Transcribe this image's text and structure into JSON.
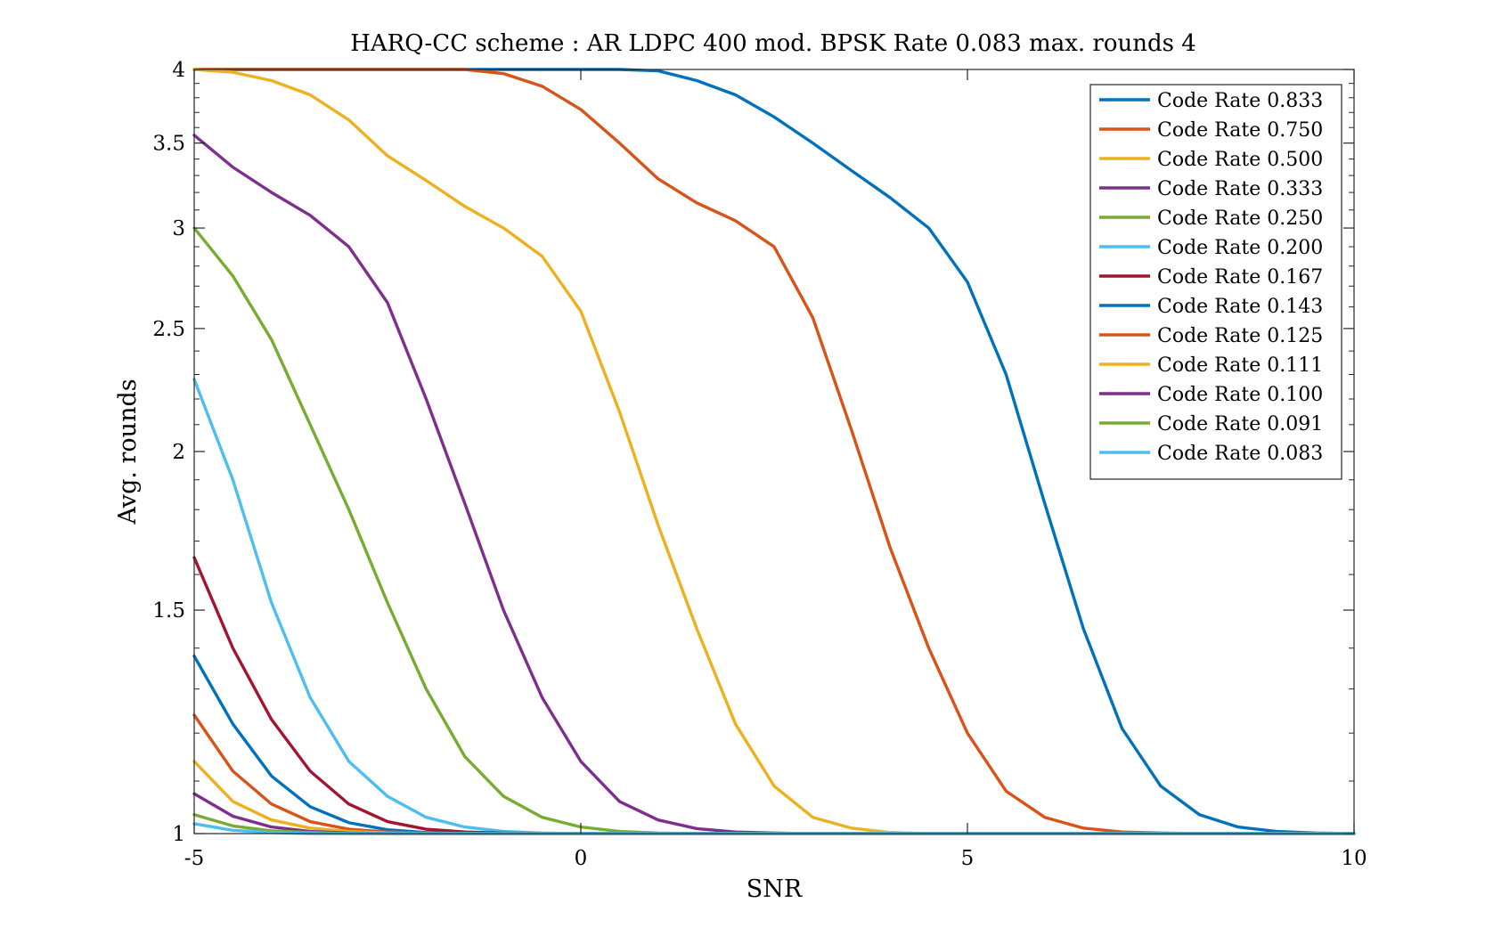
{
  "chart_data": {
    "type": "line",
    "title": "HARQ-CC scheme : AR LDPC 400 mod. BPSK Rate 0.083 max. rounds 4",
    "xlabel": "SNR",
    "ylabel": "Avg. rounds",
    "xlim": [
      -5,
      10
    ],
    "ylim": [
      1,
      4
    ],
    "yscale": "log",
    "x_ticks": [
      -5,
      0,
      5,
      10
    ],
    "x_tick_labels": [
      "-5",
      "0",
      "5",
      "10"
    ],
    "y_ticks": [
      1,
      1.5,
      2,
      2.5,
      3,
      3.5,
      4
    ],
    "y_tick_labels": [
      "1",
      "1.5",
      "2",
      "2.5",
      "3",
      "3.5",
      "4"
    ],
    "grid": false,
    "legend_position": "top-right",
    "x": [
      -5,
      -4.5,
      -4,
      -3.5,
      -3,
      -2.5,
      -2,
      -1.5,
      -1,
      -0.5,
      0,
      0.5,
      1,
      1.5,
      2,
      2.5,
      3,
      3.5,
      4,
      4.5,
      5,
      5.5,
      6,
      6.5,
      7,
      7.5,
      8,
      8.5,
      9,
      9.5,
      10
    ],
    "series": [
      {
        "name": "Code Rate 0.833",
        "color": "#0072BD",
        "values": [
          4,
          4,
          4,
          4,
          4,
          4,
          4,
          4,
          4,
          4,
          4,
          4,
          3.99,
          3.92,
          3.82,
          3.67,
          3.5,
          3.33,
          3.17,
          3.0,
          2.72,
          2.3,
          1.82,
          1.45,
          1.21,
          1.09,
          1.035,
          1.012,
          1.004,
          1.001,
          1.0
        ]
      },
      {
        "name": "Code Rate 0.750",
        "color": "#D95319",
        "values": [
          4,
          4,
          4,
          4,
          4,
          4,
          4,
          4,
          3.97,
          3.88,
          3.72,
          3.5,
          3.28,
          3.14,
          3.04,
          2.9,
          2.55,
          2.08,
          1.68,
          1.4,
          1.2,
          1.08,
          1.03,
          1.01,
          1.003,
          1.001,
          1.0,
          1.0,
          1.0,
          1.0,
          1.0
        ]
      },
      {
        "name": "Code Rate 0.500",
        "color": "#EDB120",
        "values": [
          4,
          3.98,
          3.92,
          3.82,
          3.65,
          3.42,
          3.27,
          3.12,
          3.0,
          2.85,
          2.58,
          2.15,
          1.75,
          1.45,
          1.22,
          1.09,
          1.03,
          1.01,
          1.002,
          1.0,
          1.0,
          1.0,
          1.0,
          1.0,
          1.0,
          1.0,
          1.0,
          1.0,
          1.0,
          1.0,
          1.0
        ]
      },
      {
        "name": "Code Rate 0.333",
        "color": "#7E2F8E",
        "values": [
          3.55,
          3.35,
          3.2,
          3.07,
          2.9,
          2.62,
          2.2,
          1.82,
          1.5,
          1.28,
          1.14,
          1.06,
          1.025,
          1.009,
          1.003,
          1.001,
          1.0,
          1.0,
          1.0,
          1.0,
          1.0,
          1.0,
          1.0,
          1.0,
          1.0,
          1.0,
          1.0,
          1.0,
          1.0,
          1.0,
          1.0
        ]
      },
      {
        "name": "Code Rate 0.250",
        "color": "#77AC30",
        "values": [
          3.0,
          2.75,
          2.45,
          2.1,
          1.8,
          1.52,
          1.3,
          1.15,
          1.07,
          1.03,
          1.012,
          1.004,
          1.001,
          1.0,
          1.0,
          1.0,
          1.0,
          1.0,
          1.0,
          1.0,
          1.0,
          1.0,
          1.0,
          1.0,
          1.0,
          1.0,
          1.0,
          1.0,
          1.0,
          1.0,
          1.0
        ]
      },
      {
        "name": "Code Rate 0.200",
        "color": "#4DBEEE",
        "values": [
          2.28,
          1.9,
          1.52,
          1.28,
          1.14,
          1.07,
          1.03,
          1.012,
          1.004,
          1.001,
          1.0,
          1.0,
          1.0,
          1.0,
          1.0,
          1.0,
          1.0,
          1.0,
          1.0,
          1.0,
          1.0,
          1.0,
          1.0,
          1.0,
          1.0,
          1.0,
          1.0,
          1.0,
          1.0,
          1.0,
          1.0
        ]
      },
      {
        "name": "Code Rate 0.167",
        "color": "#A2142F",
        "values": [
          1.65,
          1.4,
          1.23,
          1.12,
          1.055,
          1.022,
          1.008,
          1.003,
          1.001,
          1.0,
          1.0,
          1.0,
          1.0,
          1.0,
          1.0,
          1.0,
          1.0,
          1.0,
          1.0,
          1.0,
          1.0,
          1.0,
          1.0,
          1.0,
          1.0,
          1.0,
          1.0,
          1.0,
          1.0,
          1.0,
          1.0
        ]
      },
      {
        "name": "Code Rate 0.143",
        "color": "#0072BD",
        "values": [
          1.38,
          1.22,
          1.11,
          1.05,
          1.02,
          1.007,
          1.002,
          1.0,
          1.0,
          1.0,
          1.0,
          1.0,
          1.0,
          1.0,
          1.0,
          1.0,
          1.0,
          1.0,
          1.0,
          1.0,
          1.0,
          1.0,
          1.0,
          1.0,
          1.0,
          1.0,
          1.0,
          1.0,
          1.0,
          1.0,
          1.0
        ]
      },
      {
        "name": "Code Rate 0.125",
        "color": "#D95319",
        "values": [
          1.24,
          1.12,
          1.055,
          1.022,
          1.008,
          1.003,
          1.001,
          1.0,
          1.0,
          1.0,
          1.0,
          1.0,
          1.0,
          1.0,
          1.0,
          1.0,
          1.0,
          1.0,
          1.0,
          1.0,
          1.0,
          1.0,
          1.0,
          1.0,
          1.0,
          1.0,
          1.0,
          1.0,
          1.0,
          1.0,
          1.0
        ]
      },
      {
        "name": "Code Rate 0.111",
        "color": "#EDB120",
        "values": [
          1.14,
          1.06,
          1.025,
          1.01,
          1.004,
          1.001,
          1.0,
          1.0,
          1.0,
          1.0,
          1.0,
          1.0,
          1.0,
          1.0,
          1.0,
          1.0,
          1.0,
          1.0,
          1.0,
          1.0,
          1.0,
          1.0,
          1.0,
          1.0,
          1.0,
          1.0,
          1.0,
          1.0,
          1.0,
          1.0,
          1.0
        ]
      },
      {
        "name": "Code Rate 0.100",
        "color": "#7E2F8E",
        "values": [
          1.075,
          1.032,
          1.012,
          1.004,
          1.001,
          1.0,
          1.0,
          1.0,
          1.0,
          1.0,
          1.0,
          1.0,
          1.0,
          1.0,
          1.0,
          1.0,
          1.0,
          1.0,
          1.0,
          1.0,
          1.0,
          1.0,
          1.0,
          1.0,
          1.0,
          1.0,
          1.0,
          1.0,
          1.0,
          1.0,
          1.0
        ]
      },
      {
        "name": "Code Rate 0.091",
        "color": "#77AC30",
        "values": [
          1.035,
          1.014,
          1.005,
          1.002,
          1.0,
          1.0,
          1.0,
          1.0,
          1.0,
          1.0,
          1.0,
          1.0,
          1.0,
          1.0,
          1.0,
          1.0,
          1.0,
          1.0,
          1.0,
          1.0,
          1.0,
          1.0,
          1.0,
          1.0,
          1.0,
          1.0,
          1.0,
          1.0,
          1.0,
          1.0,
          1.0
        ]
      },
      {
        "name": "Code Rate 0.083",
        "color": "#4DBEEE",
        "values": [
          1.018,
          1.006,
          1.002,
          1.0,
          1.0,
          1.0,
          1.0,
          1.0,
          1.0,
          1.0,
          1.0,
          1.0,
          1.0,
          1.0,
          1.0,
          1.0,
          1.0,
          1.0,
          1.0,
          1.0,
          1.0,
          1.0,
          1.0,
          1.0,
          1.0,
          1.0,
          1.0,
          1.0,
          1.0,
          1.0,
          1.0
        ]
      }
    ]
  }
}
